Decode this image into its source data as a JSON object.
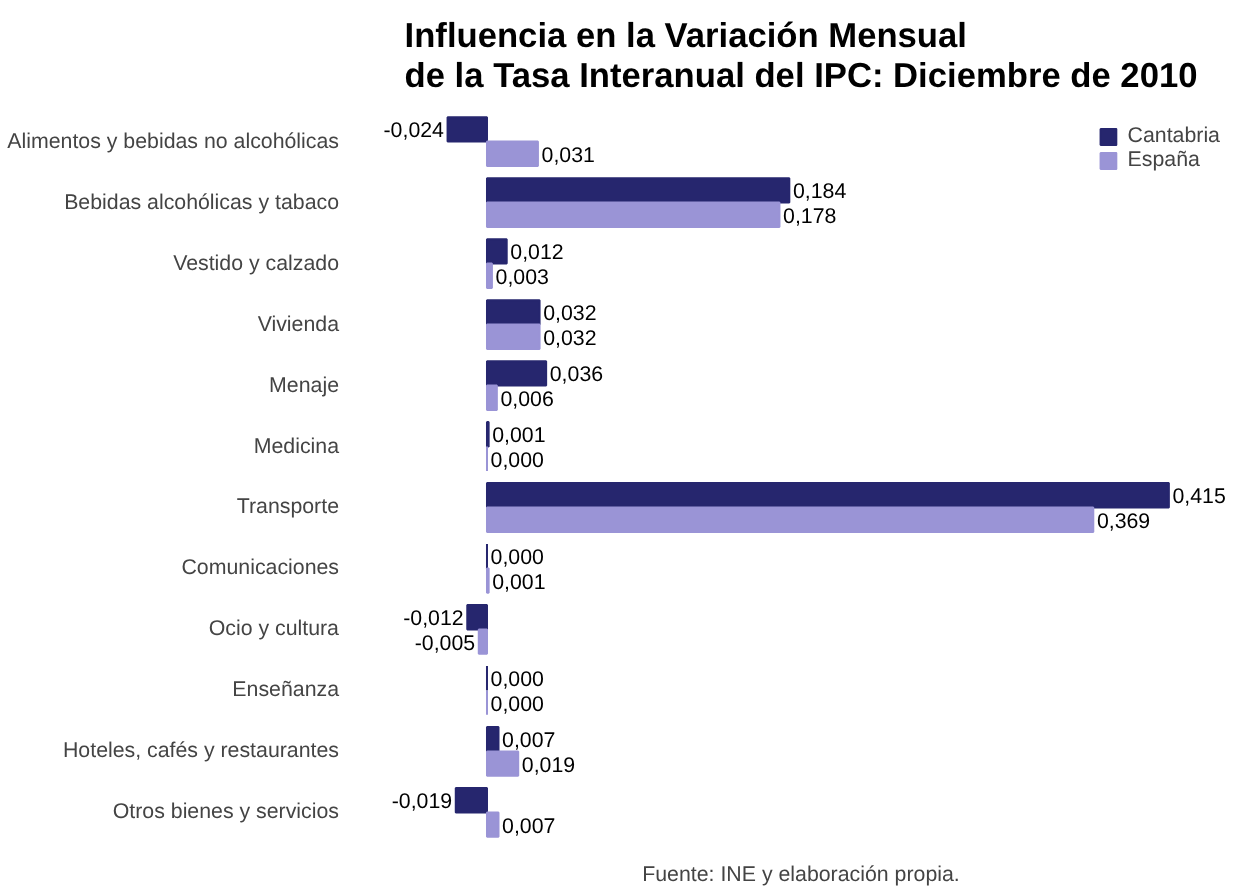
{
  "chart_data": {
    "type": "bar",
    "orientation": "horizontal",
    "title": "Influencia en la Variación Mensual\nde la Tasa Interanual del IPC: Diciembre de 2010",
    "categories": [
      "Alimentos y bebidas no alcohólicas",
      "Bebidas alcohólicas y tabaco",
      "Vestido y calzado",
      "Vivienda",
      "Menaje",
      "Medicina",
      "Transporte",
      "Comunicaciones",
      "Ocio y cultura",
      "Enseñanza",
      "Hoteles, cafés y restaurantes",
      "Otros bienes y servicios"
    ],
    "series": [
      {
        "name": "Cantabria",
        "color": "#26266e",
        "values": [
          -0.024,
          0.184,
          0.012,
          0.032,
          0.036,
          0.001,
          0.415,
          0.0,
          -0.012,
          0.0,
          0.007,
          -0.019
        ],
        "value_labels": [
          "-0,024",
          "0,184",
          "0,012",
          "0,032",
          "0,036",
          "0,001",
          "0,415",
          "0,000",
          "-0,012",
          "0,000",
          "0,007",
          "-0,019"
        ]
      },
      {
        "name": "España",
        "color": "#9a94d6",
        "values": [
          0.031,
          0.178,
          0.003,
          0.032,
          0.006,
          0.0,
          0.369,
          0.001,
          -0.005,
          0.0,
          0.019,
          0.007
        ],
        "value_labels": [
          "0,031",
          "0,178",
          "0,003",
          "0,032",
          "0,006",
          "0,000",
          "0,369",
          "0,001",
          "-0,005",
          "0,000",
          "0,019",
          "0,007"
        ]
      }
    ],
    "legend": "top right",
    "grid": false,
    "annotations": [
      "Fuente: INE y elaboración propia."
    ]
  }
}
